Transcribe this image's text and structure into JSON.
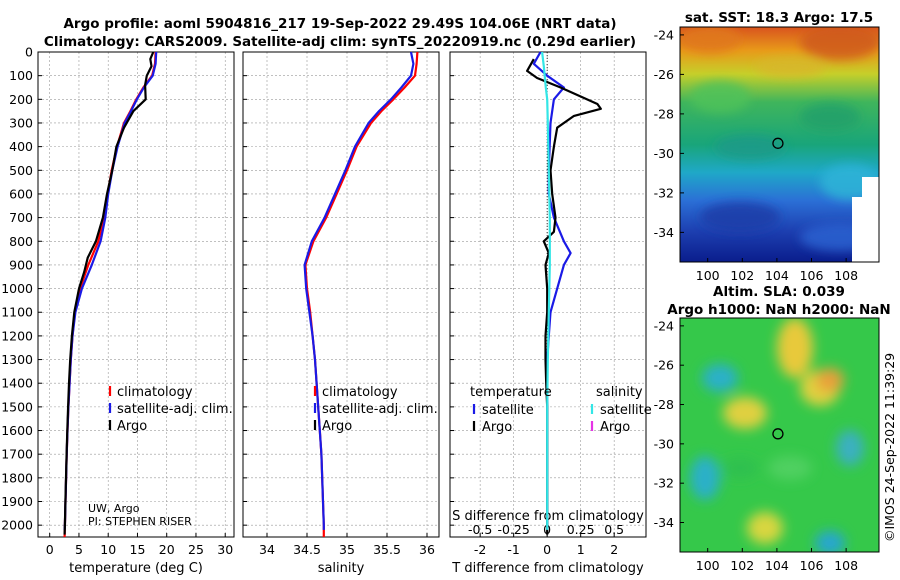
{
  "title_line1": "Argo profile: aoml 5904816_217 19-Sep-2022 29.49S 104.06E (NRT data)",
  "title_line2": "Climatology: CARS2009. Satellite-adj clim: synTS_20220919.nc (0.29d earlier)",
  "side_stamp": "©IMOS 24-Sep-2022 11:39:29",
  "attribution": {
    "line1": "UW, Argo",
    "line2": "PI: STEPHEN RISER"
  },
  "colors": {
    "climatology": "#ff0000",
    "satellite": "#1a1ae6",
    "argo": "#000000",
    "sat_salinity": "#33e6e6",
    "argo_salinity": "#e633e6"
  },
  "chart_data": [
    {
      "type": "line",
      "xlabel": "temperature (deg C)",
      "ylabel": "",
      "xlim": [
        -2,
        31.5
      ],
      "ylim": [
        2050,
        0
      ],
      "xticks": [
        0,
        5,
        10,
        15,
        20,
        25,
        30
      ],
      "yticks": [
        0,
        100,
        200,
        300,
        400,
        500,
        600,
        700,
        800,
        900,
        1000,
        1100,
        1200,
        1300,
        1400,
        1500,
        1600,
        1700,
        1800,
        1900,
        2000
      ],
      "legend": [
        "climatology",
        "satellite-adj. clim.",
        "Argo"
      ],
      "legend_position": "bottom-right",
      "series": [
        {
          "name": "climatology",
          "color": "#ff0000",
          "points": [
            [
              18.1,
              0
            ],
            [
              18,
              50
            ],
            [
              17.5,
              100
            ],
            [
              16,
              150
            ],
            [
              14.8,
              200
            ],
            [
              13.8,
              250
            ],
            [
              12.7,
              300
            ],
            [
              11.5,
              400
            ],
            [
              10.6,
              500
            ],
            [
              9.9,
              600
            ],
            [
              9.3,
              700
            ],
            [
              8.3,
              800
            ],
            [
              6.6,
              900
            ],
            [
              5.2,
              1000
            ],
            [
              4.3,
              1100
            ],
            [
              3.9,
              1200
            ],
            [
              3.6,
              1300
            ],
            [
              3.4,
              1400
            ],
            [
              3.2,
              1500
            ],
            [
              3.05,
              1600
            ],
            [
              2.9,
              1700
            ],
            [
              2.8,
              1800
            ],
            [
              2.7,
              1900
            ],
            [
              2.6,
              2000
            ],
            [
              2.55,
              2050
            ]
          ]
        },
        {
          "name": "satellite-adj. clim.",
          "color": "#1a1ae6",
          "points": [
            [
              18.2,
              0
            ],
            [
              18.1,
              50
            ],
            [
              17.6,
              100
            ],
            [
              16.1,
              150
            ],
            [
              14.9,
              200
            ],
            [
              13.9,
              250
            ],
            [
              12.8,
              300
            ],
            [
              11.6,
              400
            ],
            [
              10.7,
              500
            ],
            [
              10,
              600
            ],
            [
              9.5,
              700
            ],
            [
              8.7,
              800
            ],
            [
              7.2,
              900
            ],
            [
              5.5,
              1000
            ],
            [
              4.4,
              1100
            ],
            [
              3.9,
              1200
            ],
            [
              3.6,
              1300
            ],
            [
              3.4,
              1400
            ],
            [
              3.2,
              1500
            ],
            [
              3.05,
              1600
            ],
            [
              2.9,
              1700
            ],
            [
              2.8,
              1800
            ],
            [
              2.7,
              1900
            ],
            [
              2.6,
              2000
            ],
            [
              2.55,
              2020
            ]
          ]
        },
        {
          "name": "Argo",
          "color": "#000000",
          "points": [
            [
              17.7,
              0
            ],
            [
              17.2,
              30
            ],
            [
              17.4,
              60
            ],
            [
              16.6,
              100
            ],
            [
              16.3,
              140
            ],
            [
              16.4,
              200
            ],
            [
              14.3,
              250
            ],
            [
              12.7,
              320
            ],
            [
              11.4,
              400
            ],
            [
              10.7,
              500
            ],
            [
              9.8,
              600
            ],
            [
              9.1,
              700
            ],
            [
              7.9,
              800
            ],
            [
              6.5,
              870
            ],
            [
              5.9,
              930
            ],
            [
              5,
              1000
            ],
            [
              4.2,
              1100
            ],
            [
              3.8,
              1200
            ],
            [
              3.5,
              1300
            ],
            [
              3.3,
              1400
            ],
            [
              3.15,
              1500
            ],
            [
              3,
              1600
            ],
            [
              2.88,
              1700
            ],
            [
              2.78,
              1800
            ],
            [
              2.68,
              1900
            ],
            [
              2.6,
              2000
            ],
            [
              2.55,
              2040
            ]
          ]
        }
      ]
    },
    {
      "type": "line",
      "xlabel": "salinity",
      "ylabel": "",
      "xlim": [
        33.7,
        36.15
      ],
      "ylim": [
        2050,
        0
      ],
      "xticks": [
        34,
        34.5,
        35,
        35.5,
        36
      ],
      "legend": [
        "climatology",
        "satellite-adj. clim.",
        "Argo"
      ],
      "legend_position": "bottom-right",
      "series": [
        {
          "name": "climatology",
          "color": "#ff0000",
          "points": [
            [
              35.88,
              0
            ],
            [
              35.87,
              50
            ],
            [
              35.85,
              100
            ],
            [
              35.72,
              150
            ],
            [
              35.58,
              200
            ],
            [
              35.43,
              250
            ],
            [
              35.3,
              300
            ],
            [
              35.12,
              400
            ],
            [
              35,
              500
            ],
            [
              34.87,
              600
            ],
            [
              34.74,
              700
            ],
            [
              34.58,
              800
            ],
            [
              34.48,
              900
            ],
            [
              34.5,
              1000
            ],
            [
              34.54,
              1100
            ],
            [
              34.57,
              1200
            ],
            [
              34.6,
              1300
            ],
            [
              34.62,
              1400
            ],
            [
              34.64,
              1500
            ],
            [
              34.66,
              1600
            ],
            [
              34.68,
              1700
            ],
            [
              34.69,
              1800
            ],
            [
              34.7,
              1900
            ],
            [
              34.71,
              2000
            ],
            [
              34.71,
              2050
            ]
          ]
        },
        {
          "name": "satellite-adj. clim.",
          "color": "#1a1ae6",
          "points": [
            [
              35.8,
              0
            ],
            [
              35.83,
              50
            ],
            [
              35.8,
              100
            ],
            [
              35.68,
              150
            ],
            [
              35.55,
              200
            ],
            [
              35.4,
              250
            ],
            [
              35.27,
              300
            ],
            [
              35.1,
              400
            ],
            [
              34.98,
              500
            ],
            [
              34.85,
              600
            ],
            [
              34.72,
              700
            ],
            [
              34.56,
              800
            ],
            [
              34.47,
              900
            ],
            [
              34.49,
              1000
            ],
            [
              34.53,
              1100
            ],
            [
              34.57,
              1200
            ],
            [
              34.6,
              1300
            ],
            [
              34.62,
              1400
            ],
            [
              34.64,
              1500
            ],
            [
              34.66,
              1600
            ],
            [
              34.68,
              1700
            ],
            [
              34.69,
              1800
            ],
            [
              34.7,
              1900
            ],
            [
              34.71,
              2000
            ],
            [
              34.71,
              2020
            ]
          ]
        },
        {
          "name": "Argo",
          "color": "#000000",
          "points": []
        }
      ]
    },
    {
      "type": "line",
      "xlabel": "T difference from climatology",
      "top_label": "S difference from climatology",
      "ylabel": "",
      "xlim": [
        -2.9,
        2.95
      ],
      "ylim": [
        2050,
        0
      ],
      "xticks": [
        -2,
        -1,
        0,
        1,
        2
      ],
      "top_ticks": [
        "-0.5",
        "-0.25",
        "0",
        "0.25",
        "0.5"
      ],
      "legend_groups": [
        {
          "heading": "temperature",
          "entries": [
            "satellite",
            "Argo"
          ]
        },
        {
          "heading": "salinity",
          "entries": [
            "satellite",
            "Argo"
          ]
        }
      ],
      "series": [
        {
          "name": "temperature satellite",
          "color": "#1a1ae6",
          "points": [
            [
              -0.2,
              0
            ],
            [
              -0.4,
              50
            ],
            [
              0,
              100
            ],
            [
              0.5,
              150
            ],
            [
              0.2,
              200
            ],
            [
              0.1,
              300
            ],
            [
              0.05,
              500
            ],
            [
              0.05,
              600
            ],
            [
              0.2,
              700
            ],
            [
              0.5,
              800
            ],
            [
              0.7,
              850
            ],
            [
              0.5,
              900
            ],
            [
              0.3,
              1000
            ],
            [
              0.1,
              1100
            ],
            [
              0.05,
              1200
            ],
            [
              0,
              1300
            ],
            [
              0,
              1400
            ],
            [
              0,
              2000
            ],
            [
              0,
              2020
            ]
          ]
        },
        {
          "name": "temperature Argo",
          "color": "#000000",
          "points": [
            [
              -0.4,
              30
            ],
            [
              -0.6,
              80
            ],
            [
              -0.3,
              110
            ],
            [
              0.4,
              150
            ],
            [
              1.5,
              220
            ],
            [
              1.6,
              240
            ],
            [
              0.8,
              270
            ],
            [
              0.3,
              320
            ],
            [
              0.2,
              400
            ],
            [
              0.1,
              500
            ],
            [
              0.15,
              600
            ],
            [
              0.25,
              700
            ],
            [
              0.2,
              760
            ],
            [
              -0.1,
              800
            ],
            [
              0.05,
              850
            ],
            [
              -0.05,
              900
            ],
            [
              0,
              1000
            ],
            [
              0,
              1100
            ],
            [
              -0.05,
              1200
            ],
            [
              -0.05,
              1300
            ],
            [
              -0.03,
              1400
            ],
            [
              0,
              1500
            ],
            [
              0,
              2000
            ],
            [
              0,
              2040
            ]
          ]
        },
        {
          "name": "salinity satellite",
          "color": "#33e6e6",
          "points": [
            [
              -0.15,
              0
            ],
            [
              -0.1,
              60
            ],
            [
              -0.04,
              150
            ],
            [
              0,
              200
            ],
            [
              0.02,
              300
            ],
            [
              0.05,
              500
            ],
            [
              0.08,
              700
            ],
            [
              0.08,
              900
            ],
            [
              0.05,
              1100
            ],
            [
              0.02,
              1300
            ],
            [
              0,
              1500
            ],
            [
              0,
              2000
            ],
            [
              0,
              2020
            ]
          ]
        }
      ]
    },
    {
      "type": "heatmap",
      "title": "sat. SST: 18.3 Argo: 17.5",
      "xticks": [
        100,
        102,
        104,
        106,
        108
      ],
      "yticks": [
        -24,
        -26,
        -28,
        -30,
        -32,
        -34
      ],
      "xlim": [
        98.4,
        109.9
      ],
      "ylim": [
        -35.5,
        -23.6
      ],
      "marker": {
        "lon": 104.06,
        "lat": -29.49
      }
    },
    {
      "type": "heatmap",
      "title": "Altim. SLA: 0.039",
      "subtitle": "Argo h1000: NaN h2000: NaN",
      "xticks": [
        100,
        102,
        104,
        106,
        108
      ],
      "yticks": [
        -24,
        -26,
        -28,
        -30,
        -32,
        -34
      ],
      "xlim": [
        98.4,
        109.9
      ],
      "ylim": [
        -35.5,
        -23.6
      ],
      "marker": {
        "lon": 104.06,
        "lat": -29.49
      }
    }
  ]
}
